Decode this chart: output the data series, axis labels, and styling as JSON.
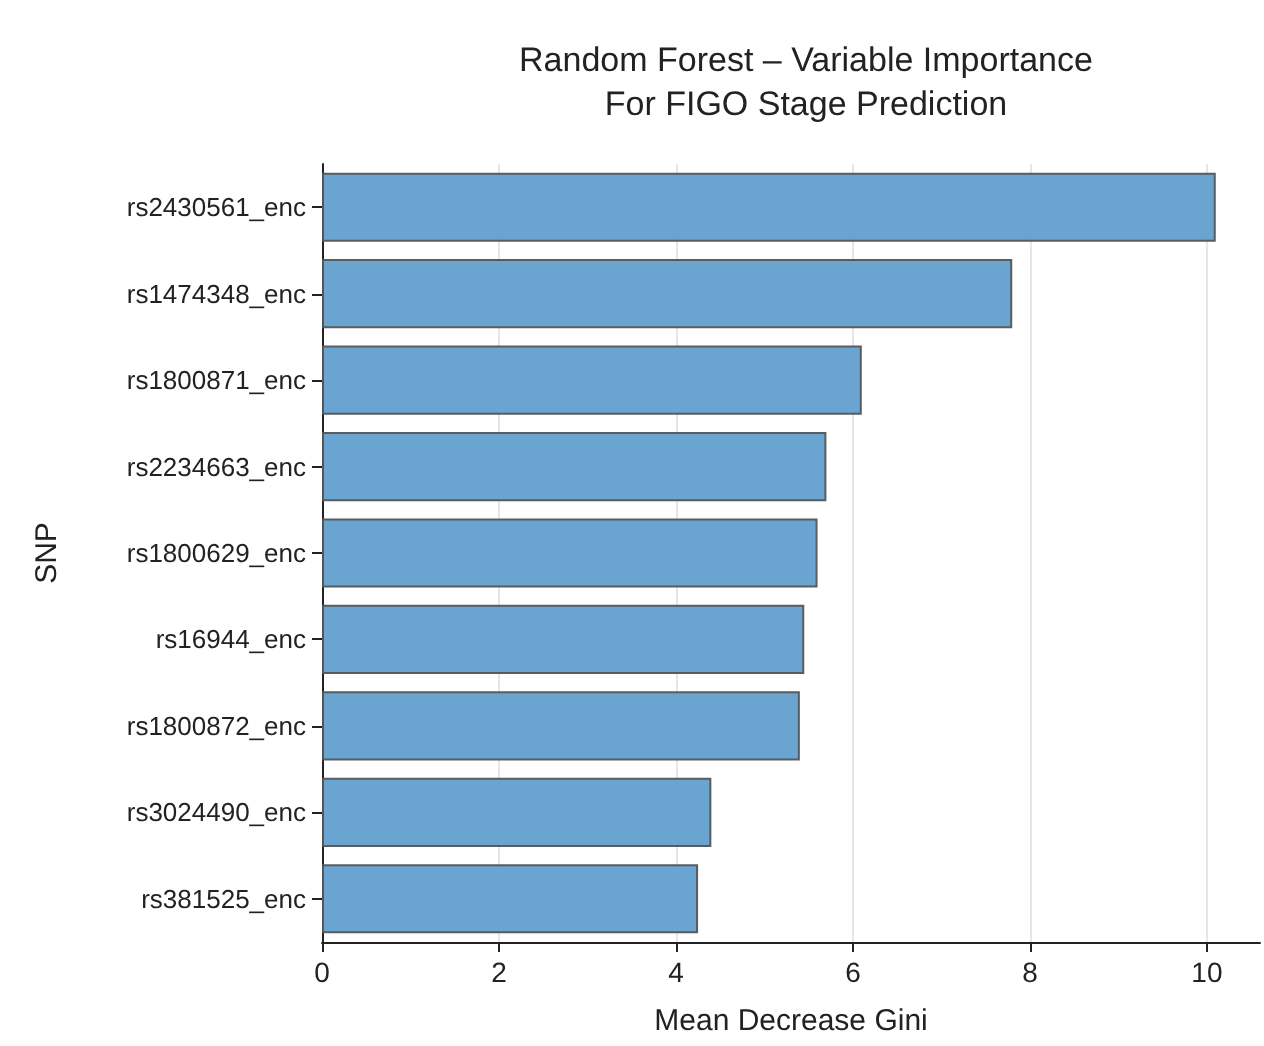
{
  "chart_data": {
    "type": "bar",
    "orientation": "horizontal",
    "title": "Random Forest – Variable Importance\nFor FIGO Stage Prediction",
    "xlabel": "Mean Decrease Gini",
    "ylabel": "SNP",
    "categories": [
      "rs2430561_enc",
      "rs1474348_enc",
      "rs1800871_enc",
      "rs2234663_enc",
      "rs1800629_enc",
      "rs16944_enc",
      "rs1800872_enc",
      "rs3024490_enc",
      "rs381525_enc"
    ],
    "values": [
      10.1,
      7.8,
      6.1,
      5.7,
      5.6,
      5.45,
      5.4,
      4.4,
      4.25
    ],
    "color": "#62a0cf",
    "xlim": [
      0,
      10.6
    ],
    "xticks": [
      0,
      2,
      4,
      6,
      8,
      10
    ],
    "grid": "x"
  }
}
